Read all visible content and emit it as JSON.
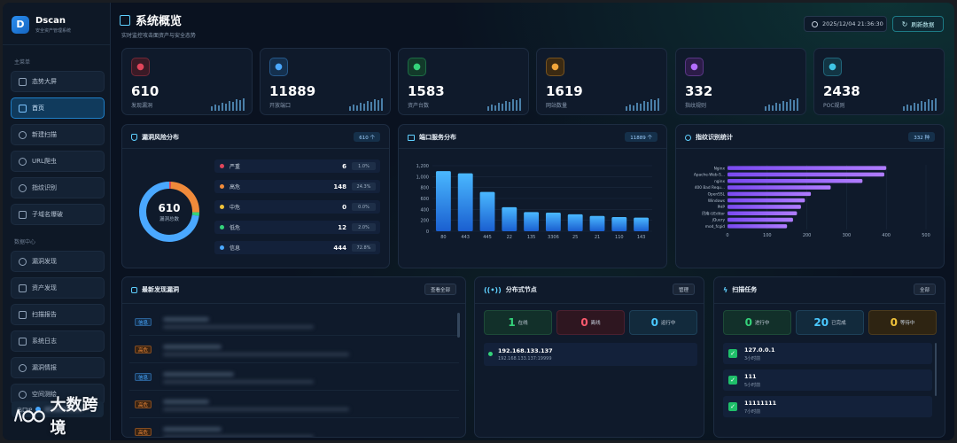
{
  "app": {
    "name": "Dscan",
    "subtitle": "安全资产管理系统"
  },
  "sidebar": {
    "section_main": "主菜单",
    "main_items": [
      {
        "label": "态势大屏",
        "icon": "grid-icon"
      },
      {
        "label": "首页",
        "icon": "home-icon",
        "active": true
      },
      {
        "label": "新建扫描",
        "icon": "target-icon"
      },
      {
        "label": "URL爬虫",
        "icon": "spider-icon"
      },
      {
        "label": "指纹识别",
        "icon": "fingerprint-icon"
      },
      {
        "label": "子域名爆破",
        "icon": "subdomain-icon"
      }
    ],
    "section_data": "数据中心",
    "data_items": [
      {
        "label": "漏洞发现",
        "icon": "shield-icon"
      },
      {
        "label": "资产发现",
        "icon": "asset-icon"
      },
      {
        "label": "扫描报告",
        "icon": "report-icon"
      },
      {
        "label": "系统日志",
        "icon": "log-icon"
      },
      {
        "label": "漏洞情报",
        "icon": "intel-icon"
      },
      {
        "label": "空间测绘",
        "icon": "globe-icon"
      }
    ],
    "exit_ip_label": "出口IP"
  },
  "watermark": "大数跨境",
  "header": {
    "title": "系统概览",
    "subtitle": "实时监控攻击面资产与安全态势",
    "timestamp": "2025/12/04 21:36:30",
    "refresh_label": "刷新数据"
  },
  "stats": [
    {
      "value": "610",
      "label": "发现漏洞",
      "icon": "shield-icon",
      "color": "#e0455b",
      "bg": "#3a1a26"
    },
    {
      "value": "11889",
      "label": "开放端口",
      "icon": "server-icon",
      "color": "#4aa8ff",
      "bg": "#14304e"
    },
    {
      "value": "1583",
      "label": "资产台数",
      "icon": "monitor-icon",
      "color": "#34d27a",
      "bg": "#123a2a"
    },
    {
      "value": "1619",
      "label": "网站数量",
      "icon": "globe-icon",
      "color": "#f0a53a",
      "bg": "#3b2a12"
    },
    {
      "value": "332",
      "label": "指纹规则",
      "icon": "fingerprint-icon",
      "color": "#b46cff",
      "bg": "#2c1c48"
    },
    {
      "value": "2438",
      "label": "POC规则",
      "icon": "wrench-icon",
      "color": "#3fc6e6",
      "bg": "#123544"
    }
  ],
  "risk": {
    "title": "漏洞风险分布",
    "badge": "610 个",
    "donut_value": "610",
    "donut_label": "漏洞总数",
    "rows": [
      {
        "label": "严重",
        "count": "6",
        "pct": "1.0%",
        "color": "#e0455b"
      },
      {
        "label": "高危",
        "count": "148",
        "pct": "24.3%",
        "color": "#f08a3a"
      },
      {
        "label": "中危",
        "count": "0",
        "pct": "0.0%",
        "color": "#f0c23a"
      },
      {
        "label": "低危",
        "count": "12",
        "pct": "2.0%",
        "color": "#34d27a"
      },
      {
        "label": "信息",
        "count": "444",
        "pct": "72.8%",
        "color": "#4aa8ff"
      }
    ]
  },
  "ports": {
    "title": "端口服务分布",
    "badge": "11889 个"
  },
  "fingerprint": {
    "title": "指纹识别统计",
    "badge": "332 种"
  },
  "chart_data": [
    {
      "type": "bar",
      "categories": [
        "80",
        "443",
        "445",
        "22",
        "135",
        "3306",
        "25",
        "21",
        "110",
        "143"
      ],
      "values": [
        1100,
        1060,
        720,
        440,
        350,
        340,
        310,
        280,
        260,
        250
      ],
      "ylim": [
        0,
        1200
      ],
      "yticks": [
        "0",
        "200",
        "400",
        "600",
        "800",
        "1,000",
        "1,200"
      ],
      "grid": true
    },
    {
      "type": "bar",
      "orientation": "horizontal",
      "categories": [
        "Nginx",
        "Apache-Web-S...",
        "nginx",
        "400 Bad Requ...",
        "OpenSSL",
        "Windows",
        "PHP",
        "巴南-UEditor",
        "jQuery",
        "mod_fcgid"
      ],
      "values": [
        400,
        395,
        340,
        260,
        210,
        195,
        185,
        175,
        165,
        150
      ],
      "xlim": [
        0,
        500
      ],
      "xticks": [
        "0",
        "100",
        "200",
        "300",
        "400",
        "500"
      ],
      "grid": true
    }
  ],
  "recent_vulns": {
    "title": "最新发现漏洞",
    "view_all": "查看全部",
    "rows": [
      {
        "tag": "信息",
        "tag_color": "#4aa8ff",
        "tag_bg": "#14304e"
      },
      {
        "tag": "高危",
        "tag_color": "#f08a3a",
        "tag_bg": "#3b2412"
      },
      {
        "tag": "信息",
        "tag_color": "#4aa8ff",
        "tag_bg": "#14304e"
      },
      {
        "tag": "高危",
        "tag_color": "#f08a3a",
        "tag_bg": "#3b2412"
      },
      {
        "tag": "高危",
        "tag_color": "#f08a3a",
        "tag_bg": "#3b2412"
      }
    ]
  },
  "nodes": {
    "title": "分布式节点",
    "manage": "管理",
    "online": {
      "n": "1",
      "l": "在线"
    },
    "offline": {
      "n": "0",
      "l": "离线"
    },
    "running": {
      "n": "0",
      "l": "运行中"
    },
    "list": [
      {
        "ip": "192.168.133.137",
        "addr": "192.168.133.137:19999"
      }
    ]
  },
  "tasks": {
    "title": "扫描任务",
    "all": "全部",
    "running": {
      "n": "0",
      "l": "进行中"
    },
    "done": {
      "n": "20",
      "l": "已完成"
    },
    "waiting": {
      "n": "0",
      "l": "等待中"
    },
    "list": [
      {
        "name": "127.0.0.1",
        "time": "3小时前"
      },
      {
        "name": "111",
        "time": "5小时前"
      },
      {
        "name": "11111111",
        "time": "7小时前"
      }
    ]
  }
}
